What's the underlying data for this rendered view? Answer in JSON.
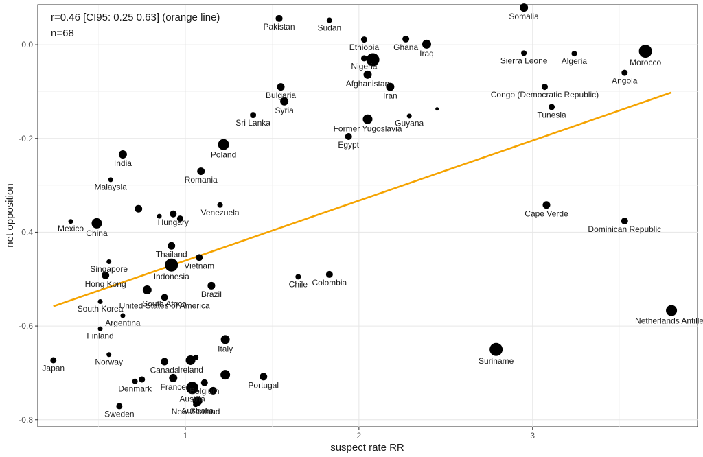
{
  "chart_data": {
    "type": "scatter",
    "xlabel": "suspect rate RR",
    "ylabel": "net opposition",
    "xlim": [
      0.15,
      3.95
    ],
    "ylim": [
      -0.815,
      0.085
    ],
    "x_ticks": [
      1,
      2,
      3
    ],
    "y_ticks": [
      0.0,
      -0.2,
      -0.4,
      -0.6,
      -0.8
    ],
    "y_tick_labels": [
      "0.0",
      "-0.2",
      "-0.4",
      "-0.6",
      "-0.8"
    ],
    "grid": true,
    "annotations": [
      "r=0.46 [CI95: 0.25 0.63] (orange line)",
      "n=68"
    ],
    "fit_line": {
      "color": "#f5a300",
      "x": [
        0.24,
        3.8
      ],
      "y": [
        -0.558,
        -0.102
      ]
    },
    "points": [
      {
        "label": "Somalia",
        "x": 2.95,
        "y": 0.079,
        "s": 6
      },
      {
        "label": "Pakistan",
        "x": 1.54,
        "y": 0.056,
        "s": 5
      },
      {
        "label": "Sudan",
        "x": 1.83,
        "y": 0.052,
        "s": 4
      },
      {
        "label": "Ethiopia",
        "x": 2.03,
        "y": 0.011,
        "s": 4.5
      },
      {
        "label": "Ghana",
        "x": 2.27,
        "y": 0.012,
        "s": 5
      },
      {
        "label": "Iraq",
        "x": 2.39,
        "y": 0.001,
        "s": 6.5
      },
      {
        "label": "Nigeria",
        "x": 2.03,
        "y": -0.029,
        "s": 4.5
      },
      {
        "label": "",
        "x": 2.08,
        "y": -0.032,
        "s": 9.5
      },
      {
        "label": "Sierra Leone",
        "x": 2.95,
        "y": -0.018,
        "s": 4
      },
      {
        "label": "Algeria",
        "x": 3.24,
        "y": -0.019,
        "s": 4
      },
      {
        "label": "Morocco",
        "x": 3.65,
        "y": -0.014,
        "s": 9.5
      },
      {
        "label": "Angola",
        "x": 3.53,
        "y": -0.06,
        "s": 4.5
      },
      {
        "label": "Afghanistan",
        "x": 2.05,
        "y": -0.064,
        "s": 6
      },
      {
        "label": "Iran",
        "x": 2.18,
        "y": -0.09,
        "s": 6
      },
      {
        "label": "Congo (Democratic Republic)",
        "x": 3.07,
        "y": -0.09,
        "s": 4.5
      },
      {
        "label": "Bulgaria",
        "x": 1.55,
        "y": -0.09,
        "s": 5.5
      },
      {
        "label": "Syria",
        "x": 1.57,
        "y": -0.121,
        "s": 6
      },
      {
        "label": "Tunesia",
        "x": 3.11,
        "y": -0.133,
        "s": 4.5
      },
      {
        "label": "Sri Lanka",
        "x": 1.39,
        "y": -0.15,
        "s": 4.5
      },
      {
        "label": "Guyana",
        "x": 2.29,
        "y": -0.152,
        "s": 3.5
      },
      {
        "label": "",
        "x": 2.45,
        "y": -0.137,
        "s": 2.5
      },
      {
        "label": "Former Yugoslavia",
        "x": 2.05,
        "y": -0.159,
        "s": 7
      },
      {
        "label": "Egypt",
        "x": 1.94,
        "y": -0.196,
        "s": 5
      },
      {
        "label": "Poland",
        "x": 1.22,
        "y": -0.213,
        "s": 8
      },
      {
        "label": "India",
        "x": 0.64,
        "y": -0.234,
        "s": 6
      },
      {
        "label": "Romania",
        "x": 1.09,
        "y": -0.27,
        "s": 5.5
      },
      {
        "label": "Malaysia",
        "x": 0.57,
        "y": -0.288,
        "s": 3.5
      },
      {
        "label": "Venezuela",
        "x": 1.2,
        "y": -0.342,
        "s": 4
      },
      {
        "label": "",
        "x": 0.73,
        "y": -0.35,
        "s": 5.5
      },
      {
        "label": "",
        "x": 0.85,
        "y": -0.366,
        "s": 3.5
      },
      {
        "label": "Hungary",
        "x": 0.93,
        "y": -0.361,
        "s": 5
      },
      {
        "label": "",
        "x": 0.97,
        "y": -0.371,
        "s": 4.5
      },
      {
        "label": "Mexico",
        "x": 0.34,
        "y": -0.377,
        "s": 3.5
      },
      {
        "label": "China",
        "x": 0.49,
        "y": -0.381,
        "s": 7.5
      },
      {
        "label": "Cape Verde",
        "x": 3.08,
        "y": -0.342,
        "s": 5.5
      },
      {
        "label": "Dominican Republic",
        "x": 3.53,
        "y": -0.376,
        "s": 5
      },
      {
        "label": "Thailand",
        "x": 0.92,
        "y": -0.429,
        "s": 5.5
      },
      {
        "label": "Vietnam",
        "x": 1.08,
        "y": -0.454,
        "s": 5
      },
      {
        "label": "Indonesia",
        "x": 0.92,
        "y": -0.47,
        "s": 9.5
      },
      {
        "label": "Singapore",
        "x": 0.56,
        "y": -0.463,
        "s": 3.5
      },
      {
        "label": "Hong Kong",
        "x": 0.54,
        "y": -0.492,
        "s": 5.5
      },
      {
        "label": "Chile",
        "x": 1.65,
        "y": -0.495,
        "s": 4
      },
      {
        "label": "Colombia",
        "x": 1.83,
        "y": -0.49,
        "s": 5
      },
      {
        "label": "Brazil",
        "x": 1.15,
        "y": -0.514,
        "s": 5.5
      },
      {
        "label": "",
        "x": 0.78,
        "y": -0.523,
        "s": 6.5
      },
      {
        "label": "United States of America",
        "x": 0.88,
        "y": -0.539,
        "s": 5
      },
      {
        "label": "South Africa",
        "x": 0.88,
        "y": -0.539,
        "s": 0
      },
      {
        "label": "South Korea",
        "x": 0.51,
        "y": -0.548,
        "s": 3.5
      },
      {
        "label": "Argentina",
        "x": 0.64,
        "y": -0.578,
        "s": 3.5
      },
      {
        "label": "Finland",
        "x": 0.51,
        "y": -0.606,
        "s": 3.5
      },
      {
        "label": "Netherlands Antilles",
        "x": 3.8,
        "y": -0.567,
        "s": 8
      },
      {
        "label": "Italy",
        "x": 1.23,
        "y": -0.629,
        "s": 6.5
      },
      {
        "label": "Suriname",
        "x": 2.79,
        "y": -0.65,
        "s": 9.5
      },
      {
        "label": "Norway",
        "x": 0.56,
        "y": -0.661,
        "s": 3.5
      },
      {
        "label": "Japan",
        "x": 0.24,
        "y": -0.673,
        "s": 4.5
      },
      {
        "label": "Canada",
        "x": 0.88,
        "y": -0.676,
        "s": 5.5
      },
      {
        "label": "Ireland",
        "x": 1.03,
        "y": -0.673,
        "s": 7
      },
      {
        "label": "",
        "x": 1.06,
        "y": -0.667,
        "s": 4
      },
      {
        "label": "Portugal",
        "x": 1.45,
        "y": -0.708,
        "s": 5.5
      },
      {
        "label": "Belgium",
        "x": 1.11,
        "y": -0.721,
        "s": 5
      },
      {
        "label": "",
        "x": 1.23,
        "y": -0.704,
        "s": 7
      },
      {
        "label": "France",
        "x": 0.93,
        "y": -0.711,
        "s": 6
      },
      {
        "label": "Denmark",
        "x": 0.71,
        "y": -0.718,
        "s": 4
      },
      {
        "label": "",
        "x": 0.75,
        "y": -0.714,
        "s": 4.5
      },
      {
        "label": "Austria",
        "x": 1.04,
        "y": -0.732,
        "s": 9
      },
      {
        "label": "",
        "x": 1.16,
        "y": -0.738,
        "s": 5.5
      },
      {
        "label": "Australia",
        "x": 1.07,
        "y": -0.76,
        "s": 7
      },
      {
        "label": "New Zealand",
        "x": 1.06,
        "y": -0.767,
        "s": 4
      },
      {
        "label": "Sweden",
        "x": 0.62,
        "y": -0.771,
        "s": 4.5
      }
    ]
  }
}
